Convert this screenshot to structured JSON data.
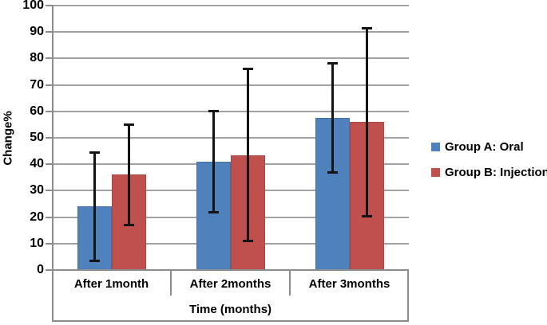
{
  "chart_data": {
    "type": "bar",
    "title": "",
    "xlabel": "Time (months)",
    "ylabel": "Change%",
    "categories": [
      "After 1month",
      "After 2months",
      "After 3months"
    ],
    "series": [
      {
        "name": "Group A: Oral",
        "color": "#4f81bd",
        "border_color": "#44719f",
        "values": [
          24,
          41,
          57.5
        ],
        "error_plus": [
          21,
          19.5,
          21
        ],
        "error_minus": [
          21,
          19.5,
          21
        ]
      },
      {
        "name": "Group B: Injection",
        "color": "#c0504d",
        "border_color": "#a84744",
        "values": [
          36,
          43.5,
          56
        ],
        "error_plus": [
          19.5,
          33,
          36
        ],
        "error_minus": [
          19.5,
          33,
          36
        ]
      }
    ],
    "ylim": [
      0,
      100
    ],
    "ytick_step": 10,
    "grid": true,
    "legend_position": "right",
    "error_bar_color": "#141414",
    "gridline_color": "#a2a2a2",
    "axis_color": "#8c8c8c"
  }
}
